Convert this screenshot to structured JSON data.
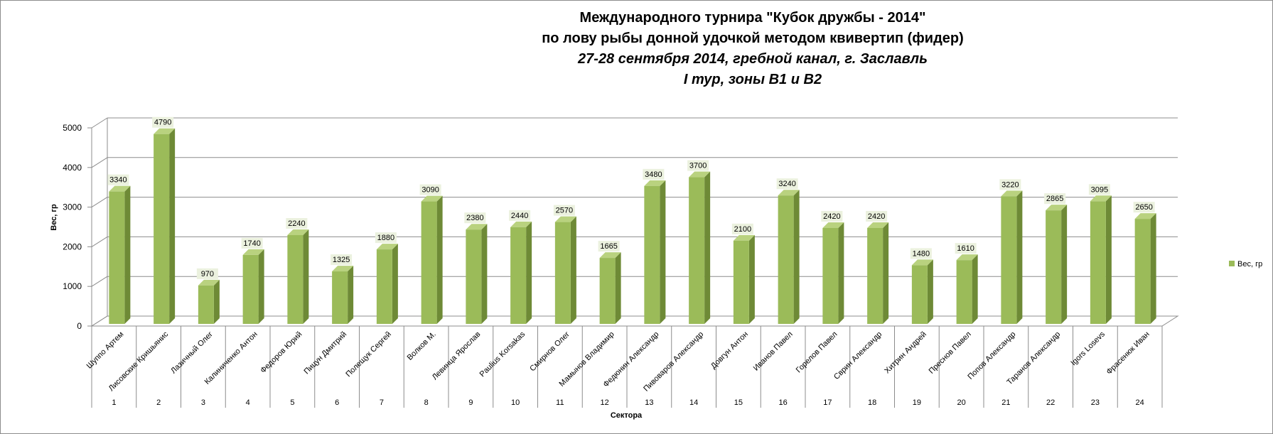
{
  "chart_data": {
    "type": "bar",
    "title_lines": [
      "Международного турнира \"Кубок дружбы - 2014\"",
      "по лову рыбы донной удочкой методом квивертип (фидер)",
      "27-28 сентября 2014, гребной канал, г. Заславль",
      "I тур, зоны В1 и В2"
    ],
    "ylabel": "Вес, гр",
    "xlabel": "Сектора",
    "ylim": [
      0,
      5000
    ],
    "yticks": [
      "0",
      "1000",
      "2000",
      "3000",
      "4000",
      "5000"
    ],
    "grid": true,
    "legend_position": "right",
    "categories": [
      {
        "name": "Шуппо Артем",
        "sector": "1"
      },
      {
        "name": "Лисовские Кришьянис",
        "sector": "2"
      },
      {
        "name": "Лазичный Олег",
        "sector": "3"
      },
      {
        "name": "Калиниченко Антон",
        "sector": "4"
      },
      {
        "name": "Федоров Юрий",
        "sector": "5"
      },
      {
        "name": "Пицун Дмитрий",
        "sector": "6"
      },
      {
        "name": "Полещук Сергей",
        "sector": "7"
      },
      {
        "name": "Волков М.",
        "sector": "8"
      },
      {
        "name": "Левинца Ярослав",
        "sector": "9"
      },
      {
        "name": "Paulius Korsakas",
        "sector": "10"
      },
      {
        "name": "Смирнов Олег",
        "sector": "11"
      },
      {
        "name": "Мамынов Владимир",
        "sector": "12"
      },
      {
        "name": "Федюнин Александр",
        "sector": "13"
      },
      {
        "name": "Пивоваров Александр",
        "sector": "14"
      },
      {
        "name": "Довгун Антон",
        "sector": "15"
      },
      {
        "name": "Иванов Павел",
        "sector": "16"
      },
      {
        "name": "Горелов Павел",
        "sector": "17"
      },
      {
        "name": "Сврин Александр",
        "sector": "18"
      },
      {
        "name": "Хитрин Андрей",
        "sector": "19"
      },
      {
        "name": "Преснов Павел",
        "sector": "20"
      },
      {
        "name": "Попов Александр",
        "sector": "21"
      },
      {
        "name": "Таранов Александр",
        "sector": "22"
      },
      {
        "name": "Igors Losevs",
        "sector": "23"
      },
      {
        "name": "Фрасенюк Иван",
        "sector": "24"
      }
    ],
    "series": [
      {
        "name": "Вес, гр",
        "color": "#9bbb59",
        "values": [
          3340,
          4790,
          970,
          1740,
          2240,
          1325,
          1880,
          3090,
          2380,
          2440,
          2570,
          1665,
          3480,
          3700,
          2100,
          3240,
          2420,
          2420,
          1480,
          1610,
          3220,
          2865,
          3095,
          2650
        ]
      }
    ],
    "colors": {
      "bar_front": "#9bbb59",
      "bar_side": "#6e8a36",
      "bar_top": "#b9d27f",
      "grid": "#8c8c8c",
      "label_bg": "#ebf1de"
    }
  }
}
